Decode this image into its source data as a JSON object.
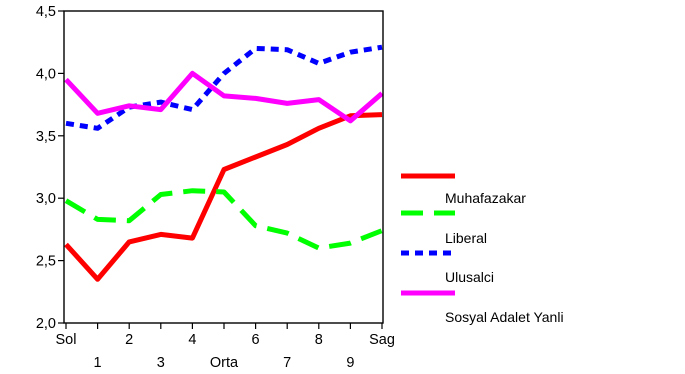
{
  "chart_data": {
    "type": "line",
    "title": "",
    "xlabel": "",
    "ylabel": "",
    "x_categories": [
      "Sol",
      "1",
      "2",
      "3",
      "4",
      "Orta",
      "6",
      "7",
      "8",
      "9",
      "Sag"
    ],
    "x_ticks_top": [
      "Sol",
      "2",
      "4",
      "6",
      "8",
      "Sag"
    ],
    "x_ticks_bottom": [
      "1",
      "3",
      "Orta",
      "7",
      "9"
    ],
    "y_tick_labels": [
      "2,0",
      "2,5",
      "3,0",
      "3,5",
      "4,0",
      "4,5"
    ],
    "ylim": [
      2.0,
      4.5
    ],
    "grid": false,
    "legend_position": "right",
    "series": [
      {
        "name": "Muhafazakar",
        "color": "#ff0000",
        "dash": "solid",
        "values": [
          2.63,
          2.35,
          2.65,
          2.71,
          2.68,
          3.23,
          3.33,
          3.43,
          3.56,
          3.66,
          3.67
        ]
      },
      {
        "name": "Liberal",
        "color": "#00ff00",
        "dash": "long-dash",
        "values": [
          2.98,
          2.83,
          2.82,
          3.03,
          3.06,
          3.05,
          2.78,
          2.72,
          2.6,
          2.64,
          2.74
        ]
      },
      {
        "name": "Ulusalci",
        "color": "#0000ff",
        "dash": "short-dash",
        "values": [
          3.6,
          3.56,
          3.73,
          3.77,
          3.71,
          4.0,
          4.2,
          4.19,
          4.08,
          4.17,
          4.21
        ]
      },
      {
        "name": "Sosyal Adalet Yanli",
        "color": "#ff00ff",
        "dash": "solid",
        "values": [
          3.95,
          3.68,
          3.74,
          3.71,
          4.0,
          3.82,
          3.8,
          3.76,
          3.79,
          3.62,
          3.84
        ]
      }
    ]
  }
}
